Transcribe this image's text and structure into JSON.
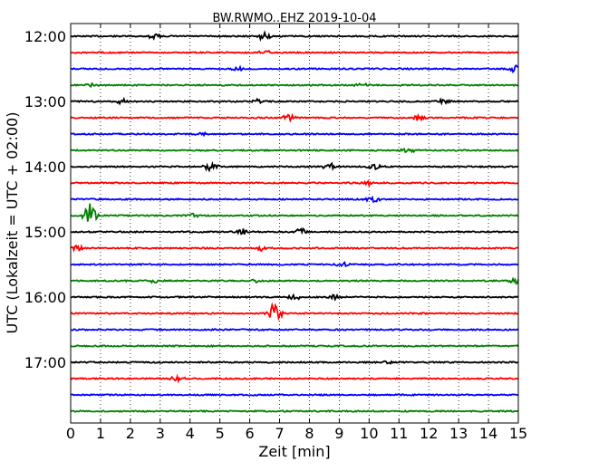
{
  "chart_data": {
    "type": "line",
    "title": "BW.RWMO..EHZ 2019-10-04",
    "xlabel": "Zeit  [min]",
    "ylabel": "UTC (Lokalzeit = UTC + 02:00)",
    "xlim": [
      0,
      15
    ],
    "x_ticks": [
      "0",
      "1",
      "2",
      "3",
      "4",
      "5",
      "6",
      "7",
      "8",
      "9",
      "10",
      "11",
      "12",
      "13",
      "14",
      "15"
    ],
    "y_tick_labels": [
      "12:00",
      "13:00",
      "14:00",
      "15:00",
      "16:00",
      "17:00"
    ],
    "trace_interval_minutes": 15,
    "grid": "vertical-dotted",
    "trace_colors": [
      "#000000",
      "#ff0000",
      "#0000ff",
      "#008000"
    ],
    "traces": [
      {
        "start": "12:00",
        "events": [
          {
            "x": 2.8,
            "amp": 0.25
          },
          {
            "x": 6.5,
            "amp": 0.3
          }
        ]
      },
      {
        "start": "12:15",
        "events": [
          {
            "x": 6.5,
            "amp": 0.2
          }
        ]
      },
      {
        "start": "12:30",
        "events": [
          {
            "x": 14.9,
            "amp": 0.3
          },
          {
            "x": 5.6,
            "amp": 0.15
          }
        ]
      },
      {
        "start": "12:45",
        "events": [
          {
            "x": 9.8,
            "amp": 0.2
          },
          {
            "x": 0.7,
            "amp": 0.15
          }
        ]
      },
      {
        "start": "13:00",
        "events": [
          {
            "x": 1.7,
            "amp": 0.25
          },
          {
            "x": 6.3,
            "amp": 0.2
          },
          {
            "x": 12.5,
            "amp": 0.25
          }
        ]
      },
      {
        "start": "13:15",
        "events": [
          {
            "x": 7.3,
            "amp": 0.3
          },
          {
            "x": 11.7,
            "amp": 0.25
          }
        ]
      },
      {
        "start": "13:30",
        "events": [
          {
            "x": 4.4,
            "amp": 0.15
          }
        ]
      },
      {
        "start": "13:45",
        "events": [
          {
            "x": 11.3,
            "amp": 0.2
          }
        ]
      },
      {
        "start": "14:00",
        "events": [
          {
            "x": 4.7,
            "amp": 0.35
          },
          {
            "x": 8.7,
            "amp": 0.25
          },
          {
            "x": 10.2,
            "amp": 0.25
          }
        ]
      },
      {
        "start": "14:15",
        "events": [
          {
            "x": 10.0,
            "amp": 0.2
          }
        ]
      },
      {
        "start": "14:30",
        "events": [
          {
            "x": 10.1,
            "amp": 0.25
          }
        ]
      },
      {
        "start": "14:45",
        "events": [
          {
            "x": 0.65,
            "amp": 1.0
          },
          {
            "x": 4.1,
            "amp": 0.15
          }
        ]
      },
      {
        "start": "15:00",
        "events": [
          {
            "x": 5.8,
            "amp": 0.3
          },
          {
            "x": 7.7,
            "amp": 0.3
          }
        ]
      },
      {
        "start": "15:15",
        "events": [
          {
            "x": 0.2,
            "amp": 0.25
          },
          {
            "x": 6.4,
            "amp": 0.25
          }
        ]
      },
      {
        "start": "15:30",
        "events": [
          {
            "x": 9.1,
            "amp": 0.2
          }
        ]
      },
      {
        "start": "15:45",
        "events": [
          {
            "x": 2.8,
            "amp": 0.2
          },
          {
            "x": 6.3,
            "amp": 0.2
          },
          {
            "x": 14.9,
            "amp": 0.3
          }
        ]
      },
      {
        "start": "16:00",
        "events": [
          {
            "x": 7.5,
            "amp": 0.25
          },
          {
            "x": 8.8,
            "amp": 0.2
          }
        ]
      },
      {
        "start": "16:15",
        "events": [
          {
            "x": 6.8,
            "amp": 0.9
          }
        ]
      },
      {
        "start": "16:30",
        "events": []
      },
      {
        "start": "16:45",
        "events": []
      },
      {
        "start": "17:00",
        "events": [
          {
            "x": 10.6,
            "amp": 0.15
          }
        ]
      },
      {
        "start": "17:15",
        "events": [
          {
            "x": 3.6,
            "amp": 0.3
          }
        ]
      },
      {
        "start": "17:30",
        "events": []
      },
      {
        "start": "17:45",
        "events": []
      }
    ]
  }
}
